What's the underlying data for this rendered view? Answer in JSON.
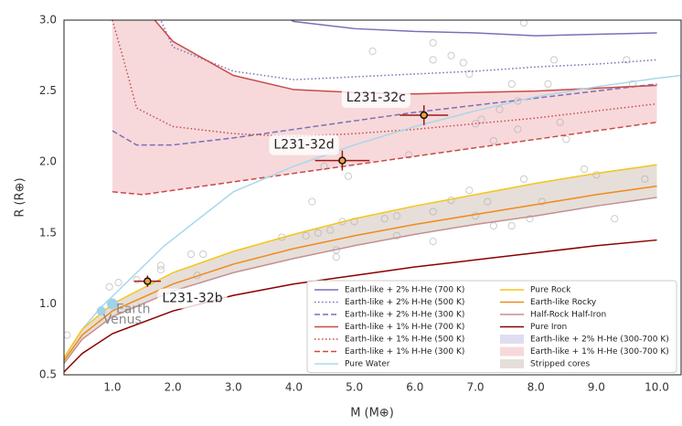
{
  "chart_data": {
    "type": "line",
    "xlabel": "M (M⊕)",
    "ylabel": "R (R⊕)",
    "xlim": [
      0.2,
      10.4
    ],
    "ylim": [
      0.5,
      3.0
    ],
    "xticks": [
      {
        "value": 1,
        "label": "1.0"
      },
      {
        "value": 2,
        "label": "2.0"
      },
      {
        "value": 3,
        "label": "3.0"
      },
      {
        "value": 4,
        "label": "4.0"
      },
      {
        "value": 5,
        "label": "5.0"
      },
      {
        "value": 6,
        "label": "6.0"
      },
      {
        "value": 7,
        "label": "7.0"
      },
      {
        "value": 8,
        "label": "8.0"
      },
      {
        "value": 9,
        "label": "9.0"
      },
      {
        "value": 10,
        "label": "10.0"
      }
    ],
    "yticks": [
      0.5,
      {
        "value": 1,
        "label": "1.0"
      },
      1.5,
      {
        "value": 2,
        "label": "2.0"
      },
      2.5,
      {
        "value": 3,
        "label": "3.0"
      }
    ],
    "grid": false,
    "legend": "lower right",
    "series": [
      {
        "name": "Earth-like + 2% H-He (700 K)",
        "color": "#7b6fb8",
        "dash": "solid",
        "x": [
          3,
          4,
          5,
          6,
          7,
          8,
          9,
          10
        ],
        "values": [
          3.2,
          2.99,
          2.94,
          2.92,
          2.91,
          2.89,
          2.9,
          2.91
        ]
      },
      {
        "name": "Earth-like + 2% H-He (500 K)",
        "color": "#7b6fb8",
        "dash": "dotted",
        "x": [
          1.5,
          1.8,
          2,
          3,
          4,
          5,
          6,
          7,
          8,
          9,
          10
        ],
        "values": [
          3.3,
          3.0,
          2.81,
          2.64,
          2.58,
          2.6,
          2.62,
          2.64,
          2.67,
          2.69,
          2.72
        ]
      },
      {
        "name": "Earth-like + 2% H-He (300 K)",
        "color": "#7b6fb8",
        "dash": "dashed",
        "x": [
          1,
          1.4,
          2,
          3,
          4,
          5,
          6,
          7,
          8,
          9,
          10
        ],
        "values": [
          2.22,
          2.12,
          2.12,
          2.17,
          2.23,
          2.29,
          2.35,
          2.4,
          2.45,
          2.5,
          2.55
        ]
      },
      {
        "name": "Earth-like + 1% H-He (700 K)",
        "color": "#c94a48",
        "dash": "solid",
        "x": [
          1.5,
          2,
          3,
          4,
          5,
          6,
          7,
          8,
          9,
          10
        ],
        "values": [
          3.1,
          2.85,
          2.61,
          2.51,
          2.49,
          2.48,
          2.49,
          2.5,
          2.52,
          2.54
        ]
      },
      {
        "name": "Earth-like + 1% H-He (500 K)",
        "color": "#c94a48",
        "dash": "dotted",
        "x": [
          1,
          1.2,
          1.4,
          2,
          3,
          4,
          5,
          6,
          7,
          8,
          9,
          10
        ],
        "values": [
          3.0,
          2.7,
          2.38,
          2.25,
          2.2,
          2.18,
          2.2,
          2.23,
          2.27,
          2.31,
          2.36,
          2.41
        ]
      },
      {
        "name": "Earth-like + 1% H-He (300 K)",
        "color": "#c94a48",
        "dash": "dashed",
        "x": [
          1,
          1.5,
          2,
          3,
          4,
          5,
          6,
          7,
          8,
          9,
          10
        ],
        "values": [
          1.79,
          1.77,
          1.8,
          1.86,
          1.92,
          1.98,
          2.04,
          2.1,
          2.16,
          2.22,
          2.28
        ]
      },
      {
        "name": "Pure Water",
        "color": "#a8d8e8",
        "dash": "solid",
        "x": [
          0.2,
          0.5,
          0.8,
          1.86,
          3,
          4,
          5,
          6,
          7,
          8,
          9,
          10,
          10.4
        ],
        "values": [
          0.62,
          0.82,
          0.97,
          1.41,
          1.79,
          1.97,
          2.12,
          2.25,
          2.36,
          2.46,
          2.53,
          2.59,
          2.61
        ]
      },
      {
        "name": "Pure Rock",
        "color": "#f5c518",
        "dash": "solid",
        "x": [
          0.2,
          0.5,
          1,
          2,
          3,
          4,
          5,
          6,
          7,
          8,
          9,
          10
        ],
        "values": [
          0.62,
          0.82,
          1.0,
          1.22,
          1.37,
          1.49,
          1.6,
          1.69,
          1.77,
          1.85,
          1.92,
          1.98
        ]
      },
      {
        "name": "Earth-like Rocky",
        "color": "#f08a1c",
        "dash": "solid",
        "x": [
          0.2,
          0.5,
          1,
          2,
          3,
          4,
          5,
          6,
          7,
          8,
          9,
          10
        ],
        "values": [
          0.6,
          0.78,
          0.95,
          1.14,
          1.28,
          1.39,
          1.48,
          1.56,
          1.63,
          1.7,
          1.77,
          1.83
        ]
      },
      {
        "name": "Half-Rock Half-Iron",
        "color": "#c49090",
        "dash": "solid",
        "x": [
          0.2,
          0.5,
          1,
          2,
          3,
          4,
          5,
          6,
          7,
          8,
          9,
          10
        ],
        "values": [
          0.58,
          0.75,
          0.91,
          1.09,
          1.22,
          1.32,
          1.41,
          1.49,
          1.56,
          1.62,
          1.69,
          1.75
        ]
      },
      {
        "name": "Pure Iron",
        "color": "#8b0000",
        "dash": "solid",
        "x": [
          0.2,
          0.5,
          1,
          2,
          3,
          4,
          5,
          6,
          7,
          8,
          9,
          10
        ],
        "values": [
          0.52,
          0.65,
          0.79,
          0.95,
          1.06,
          1.14,
          1.2,
          1.26,
          1.31,
          1.36,
          1.41,
          1.45
        ]
      }
    ],
    "bands": [
      {
        "name": "Earth-like + 2% H-He (300-700 K)",
        "color": "rgba(180,170,220,0.4)"
      },
      {
        "name": "Earth-like + 1% H-He (300-700 K)",
        "color": "rgba(240,185,190,0.55)",
        "x": [
          1,
          1.5,
          2,
          3,
          4,
          5,
          6,
          7,
          8,
          9,
          10
        ],
        "upper": [
          3.2,
          3.1,
          2.85,
          2.61,
          2.51,
          2.49,
          2.48,
          2.49,
          2.5,
          2.52,
          2.54
        ],
        "lower": [
          1.79,
          1.77,
          1.8,
          1.86,
          1.92,
          1.98,
          2.04,
          2.1,
          2.16,
          2.22,
          2.28
        ]
      },
      {
        "name": "Stripped cores",
        "color": "rgba(205,190,180,0.5)",
        "x": [
          0.2,
          0.5,
          1,
          2,
          3,
          4,
          5,
          6,
          7,
          8,
          9,
          10
        ],
        "upper": [
          0.62,
          0.82,
          1.0,
          1.22,
          1.37,
          1.49,
          1.6,
          1.69,
          1.77,
          1.85,
          1.92,
          1.98
        ],
        "lower": [
          0.58,
          0.75,
          0.91,
          1.09,
          1.22,
          1.32,
          1.41,
          1.49,
          1.56,
          1.62,
          1.69,
          1.75
        ]
      }
    ],
    "background": {
      "color": "#aaaaaa",
      "x": [
        0.25,
        0.95,
        1.1,
        1.4,
        1.8,
        1.8,
        2.3,
        2.4,
        2.5,
        3.8,
        4.2,
        4.4,
        4.7,
        4.8,
        4.7,
        4.6,
        5.0,
        5.5,
        5.7,
        5.7,
        5.9,
        6.3,
        6.3,
        6.6,
        6.9,
        7.0,
        7.2,
        7.3,
        7.6,
        7.7,
        7.9,
        7.8,
        8.1,
        8.4,
        8.5,
        8.8,
        9.0,
        9.3,
        9.8,
        9.6,
        4.5,
        4.3,
        4.9,
        5.3,
        6.3,
        6.3,
        6.6,
        6.8,
        6.9,
        7.6,
        7.7,
        7.0,
        7.4,
        7.1,
        7.8,
        8.3,
        9.5,
        8.2,
        7.3
      ],
      "y": [
        0.78,
        1.12,
        1.15,
        1.17,
        1.27,
        1.24,
        1.35,
        1.2,
        1.35,
        1.47,
        1.48,
        1.5,
        1.33,
        1.58,
        1.38,
        1.52,
        1.58,
        1.6,
        1.48,
        1.62,
        2.05,
        1.44,
        1.65,
        1.73,
        1.8,
        1.62,
        1.72,
        1.55,
        1.55,
        2.23,
        1.6,
        1.88,
        1.72,
        2.28,
        2.16,
        1.95,
        1.91,
        1.6,
        1.88,
        2.55,
        1.97,
        1.72,
        1.9,
        2.78,
        2.72,
        2.84,
        2.75,
        2.7,
        2.62,
        2.55,
        2.43,
        2.27,
        2.37,
        2.3,
        2.98,
        2.72,
        2.72,
        2.55,
        2.15
      ]
    },
    "planets": [
      {
        "name": "L231-32b",
        "x": 1.58,
        "y": 1.16,
        "xerr": 0.22,
        "yerr": 0.04
      },
      {
        "name": "L231-32c",
        "x": 6.15,
        "y": 2.33,
        "xerr": 0.4,
        "yerr": 0.07
      },
      {
        "name": "L231-32d",
        "x": 4.8,
        "y": 2.01,
        "xerr": 0.45,
        "yerr": 0.07
      }
    ],
    "solar": [
      {
        "name": "Earth",
        "x": 1,
        "y": 1
      },
      {
        "name": "Venus",
        "x": 0.815,
        "y": 0.95
      }
    ]
  }
}
